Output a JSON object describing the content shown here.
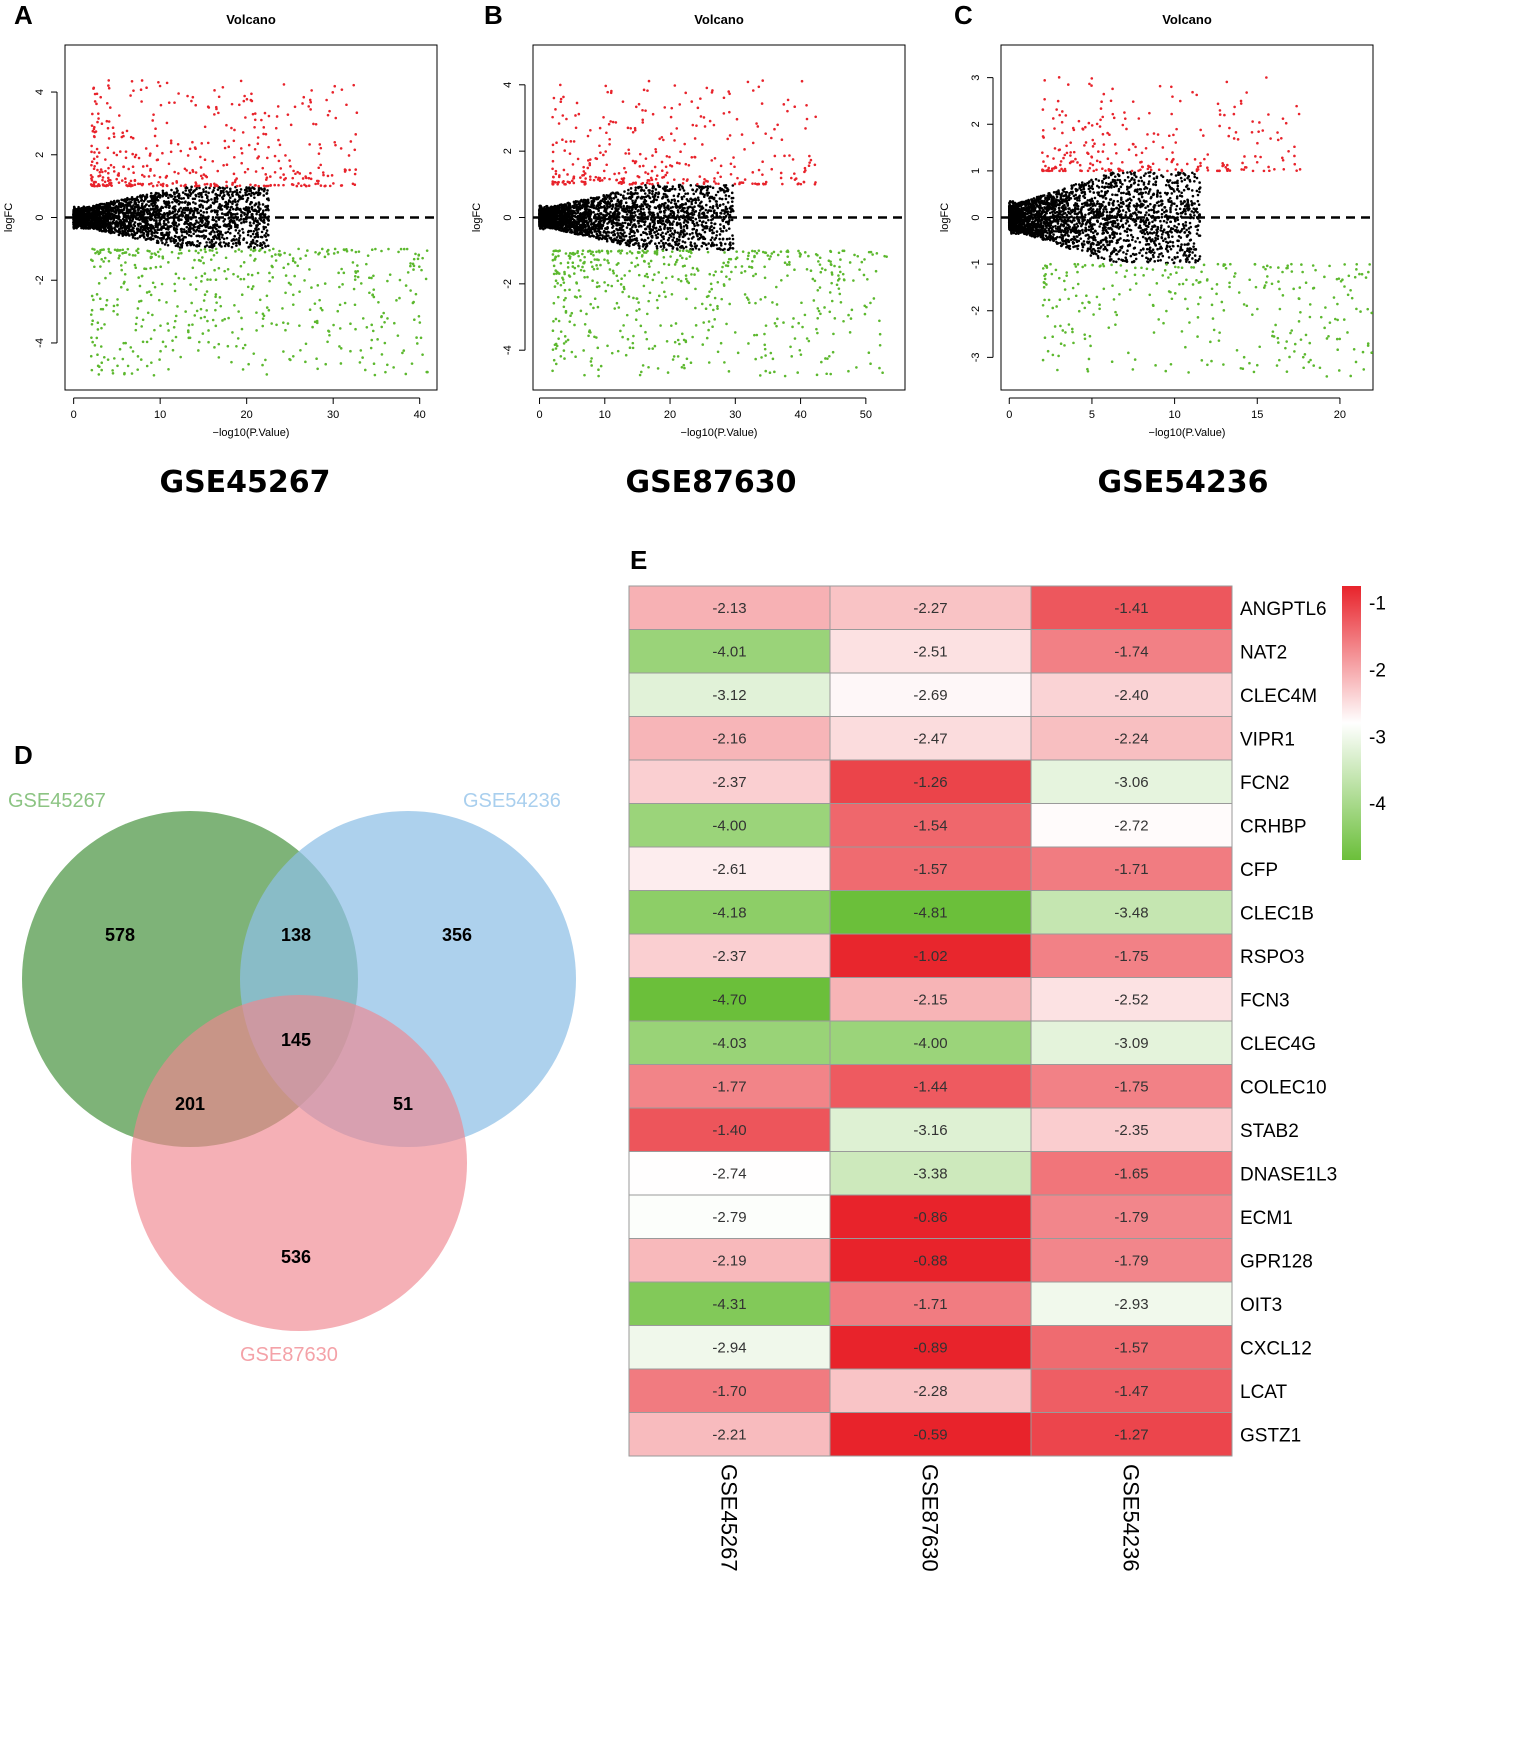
{
  "panels": {
    "A": "A",
    "B": "B",
    "C": "C",
    "D": "D",
    "E": "E"
  },
  "chart_data": [
    {
      "id": "volcano-A",
      "type": "scatter",
      "title": "Volcano",
      "xlabel": "−log10(P.Value)",
      "ylabel": "logFC",
      "dataset": "GSE45267",
      "xlim": [
        -1,
        42
      ],
      "ylim": [
        -5.5,
        5.5
      ],
      "xticks": [
        0,
        10,
        20,
        30,
        40
      ],
      "yticks": [
        -4,
        -2,
        0,
        2,
        4
      ],
      "threshold": 1,
      "sig_up_count": 420,
      "sig_down_count": 500,
      "max_x": 41,
      "seed": 11
    },
    {
      "id": "volcano-B",
      "type": "scatter",
      "title": "Volcano",
      "xlabel": "−log10(P.Value)",
      "ylabel": "logFC",
      "dataset": "GSE87630",
      "xlim": [
        -1,
        56
      ],
      "ylim": [
        -5.2,
        5.2
      ],
      "xticks": [
        0,
        10,
        20,
        30,
        40,
        50
      ],
      "yticks": [
        -4,
        -2,
        0,
        2,
        4
      ],
      "threshold": 1,
      "sig_up_count": 330,
      "sig_down_count": 560,
      "max_x": 54,
      "seed": 23
    },
    {
      "id": "volcano-C",
      "type": "scatter",
      "title": "Volcano",
      "xlabel": "−log10(P.Value)",
      "ylabel": "logFC",
      "dataset": "GSE54236",
      "xlim": [
        -0.5,
        22
      ],
      "ylim": [
        -3.7,
        3.7
      ],
      "xticks": [
        0,
        5,
        10,
        15,
        20
      ],
      "yticks": [
        -3,
        -2,
        -1,
        0,
        1,
        2,
        3
      ],
      "threshold": 1,
      "sig_up_count": 260,
      "sig_down_count": 300,
      "max_x": 21,
      "seed": 37
    },
    {
      "id": "venn-D",
      "type": "venn",
      "sets": [
        "GSE45267",
        "GSE54236",
        "GSE87630"
      ],
      "regions": {
        "only_GSE45267": 578,
        "GSE45267_GSE54236": 138,
        "only_GSE54236": 356,
        "all_three": 145,
        "GSE45267_GSE87630": 201,
        "GSE54236_GSE87630": 51,
        "only_GSE87630": 536
      }
    },
    {
      "id": "heatmap-E",
      "type": "heatmap",
      "columns": [
        "GSE45267",
        "GSE87630",
        "GSE54236"
      ],
      "rows": [
        "ANGPTL6",
        "NAT2",
        "CLEC4M",
        "VIPR1",
        "FCN2",
        "CRHBP",
        "CFP",
        "CLEC1B",
        "RSPO3",
        "FCN3",
        "CLEC4G",
        "COLEC10",
        "STAB2",
        "DNASE1L3",
        "ECM1",
        "GPR128",
        "OIT3",
        "CXCL12",
        "LCAT",
        "GSTZ1"
      ],
      "values": [
        [
          -2.13,
          -2.27,
          -1.41
        ],
        [
          -4.01,
          -2.51,
          -1.74
        ],
        [
          -3.12,
          -2.69,
          -2.4
        ],
        [
          -2.16,
          -2.47,
          -2.24
        ],
        [
          -2.37,
          -1.26,
          -3.06
        ],
        [
          -4.0,
          -1.54,
          -2.72
        ],
        [
          -2.61,
          -1.57,
          -1.71
        ],
        [
          -4.18,
          -4.81,
          -3.48
        ],
        [
          -2.37,
          -1.02,
          -1.75
        ],
        [
          -4.7,
          -2.15,
          -2.52
        ],
        [
          -4.03,
          -4.0,
          -3.09
        ],
        [
          -1.77,
          -1.44,
          -1.75
        ],
        [
          -1.4,
          -3.16,
          -2.35
        ],
        [
          -2.74,
          -3.38,
          -1.65
        ],
        [
          -2.79,
          -0.86,
          -1.79
        ],
        [
          -2.19,
          -0.88,
          -1.79
        ],
        [
          -4.31,
          -1.71,
          -2.93
        ],
        [
          -2.94,
          -0.89,
          -1.57
        ],
        [
          -1.7,
          -2.28,
          -1.47
        ],
        [
          -2.21,
          -0.59,
          -1.27
        ]
      ],
      "legend_ticks": [
        -1,
        -2,
        -3,
        -4
      ],
      "color_low": "#6bbf3a",
      "color_mid": "#ffffff",
      "color_high": "#e8232b"
    }
  ],
  "colors": {
    "up": "#e8232b",
    "down": "#5cb82e",
    "ns": "#000000",
    "venn_green": "#5a9e52",
    "venn_blue": "#8ebfe6",
    "venn_pink": "#f0858f",
    "venn_green_label": "#8cc483",
    "venn_blue_label": "#a9cfee",
    "venn_pink_label": "#f4a2a8"
  }
}
